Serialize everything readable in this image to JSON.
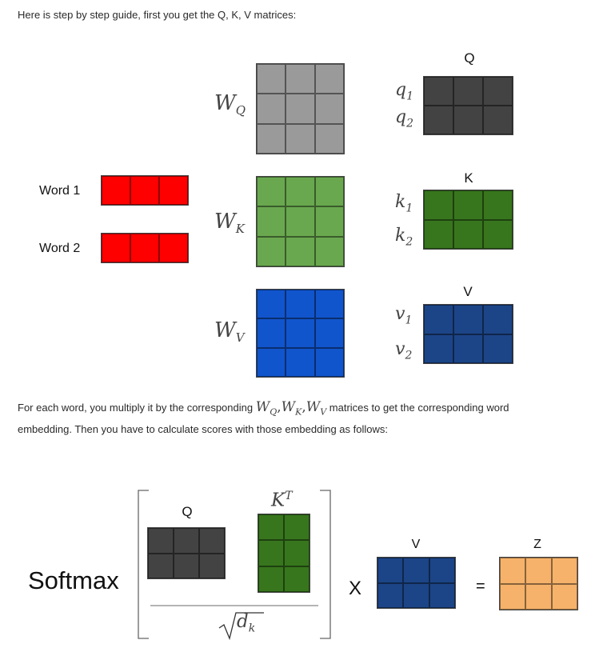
{
  "intro": "Here is step by step guide, first you get the Q, K, V matrices:",
  "words": [
    {
      "label": "Word 1",
      "color": "#ff0000"
    },
    {
      "label": "Word 2",
      "color": "#ff0000"
    }
  ],
  "weights": [
    {
      "name": "W",
      "sub": "Q",
      "color": "#9a9a9a"
    },
    {
      "name": "W",
      "sub": "K",
      "color": "#6aa84f"
    },
    {
      "name": "W",
      "sub": "V",
      "color": "#1155cc"
    }
  ],
  "outputs": [
    {
      "title": "Q",
      "rows": [
        {
          "v": "q",
          "s": "1"
        },
        {
          "v": "q",
          "s": "2"
        }
      ],
      "color": "#434343"
    },
    {
      "title": "K",
      "rows": [
        {
          "v": "k",
          "s": "1"
        },
        {
          "v": "k",
          "s": "2"
        }
      ],
      "color": "#38761d"
    },
    {
      "title": "V",
      "rows": [
        {
          "v": "v",
          "s": "1"
        },
        {
          "v": "v",
          "s": "2"
        }
      ],
      "color": "#1c4587"
    }
  ],
  "para": {
    "before": "For each word, you multiply it by the corresponding ",
    "after": " matrices to get the corresponding word embedding. Then you have to calculate scores with those embedding as follows:",
    "math": [
      {
        "v": "W",
        "s": "Q",
        "sep": ","
      },
      {
        "v": "W",
        "s": "K",
        "sep": ","
      },
      {
        "v": "W",
        "s": "V",
        "sep": ""
      }
    ]
  },
  "formula": {
    "softmax": "Softmax",
    "q_label": "Q",
    "kt_base": "K",
    "kt_sup": "T",
    "sqrt_var": "d",
    "sqrt_sub": "k",
    "times": "X",
    "v_label": "V",
    "equals": "=",
    "z_label": "Z",
    "q_color": "#434343",
    "k_color": "#38761d",
    "v_color": "#1c4587",
    "z_color": "#f6b26b"
  }
}
